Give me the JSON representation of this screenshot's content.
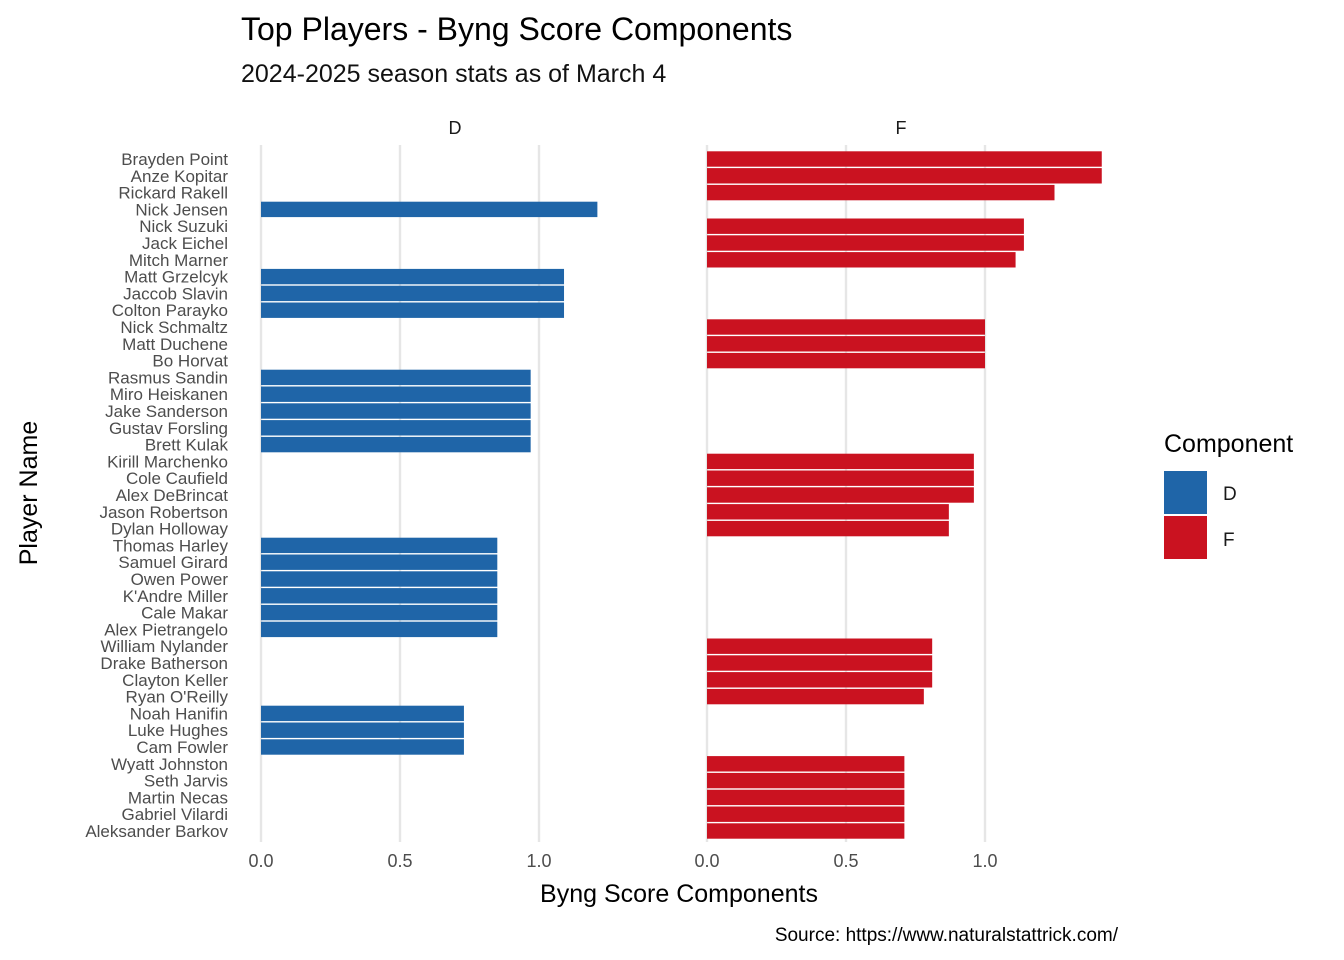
{
  "chart_data": {
    "type": "bar",
    "orientation": "horizontal",
    "title": "Top Players - Byng Score Components",
    "subtitle": "2024-2025 season stats as of March 4",
    "xlabel": "Byng Score Components",
    "ylabel": "Player Name",
    "caption": "Source: https://www.naturalstattrick.com/",
    "legend": {
      "title": "Component",
      "position": "right",
      "entries": [
        "D",
        "F"
      ]
    },
    "colors": {
      "D": "#1f65a8",
      "F": "#ca1220"
    },
    "xlim": [
      -0.05,
      1.47
    ],
    "xticks": [
      0.0,
      0.5,
      1.0
    ],
    "xtick_labels": [
      "0.0",
      "0.5",
      "1.0"
    ],
    "grid": true,
    "panels": [
      {
        "label": "D",
        "component": "D"
      },
      {
        "label": "F",
        "component": "F"
      }
    ],
    "players": [
      {
        "name": "Brayden Point",
        "component": "F",
        "value": 1.42
      },
      {
        "name": "Anze Kopitar",
        "component": "F",
        "value": 1.42
      },
      {
        "name": "Rickard Rakell",
        "component": "F",
        "value": 1.25
      },
      {
        "name": "Nick Jensen",
        "component": "D",
        "value": 1.21
      },
      {
        "name": "Nick Suzuki",
        "component": "F",
        "value": 1.14
      },
      {
        "name": "Jack Eichel",
        "component": "F",
        "value": 1.14
      },
      {
        "name": "Mitch Marner",
        "component": "F",
        "value": 1.11
      },
      {
        "name": "Matt Grzelcyk",
        "component": "D",
        "value": 1.09
      },
      {
        "name": "Jaccob Slavin",
        "component": "D",
        "value": 1.09
      },
      {
        "name": "Colton Parayko",
        "component": "D",
        "value": 1.09
      },
      {
        "name": "Nick Schmaltz",
        "component": "F",
        "value": 1.0
      },
      {
        "name": "Matt Duchene",
        "component": "F",
        "value": 1.0
      },
      {
        "name": "Bo Horvat",
        "component": "F",
        "value": 1.0
      },
      {
        "name": "Rasmus Sandin",
        "component": "D",
        "value": 0.97
      },
      {
        "name": "Miro Heiskanen",
        "component": "D",
        "value": 0.97
      },
      {
        "name": "Jake Sanderson",
        "component": "D",
        "value": 0.97
      },
      {
        "name": "Gustav Forsling",
        "component": "D",
        "value": 0.97
      },
      {
        "name": "Brett Kulak",
        "component": "D",
        "value": 0.97
      },
      {
        "name": "Kirill Marchenko",
        "component": "F",
        "value": 0.96
      },
      {
        "name": "Cole Caufield",
        "component": "F",
        "value": 0.96
      },
      {
        "name": "Alex DeBrincat",
        "component": "F",
        "value": 0.96
      },
      {
        "name": "Jason Robertson",
        "component": "F",
        "value": 0.87
      },
      {
        "name": "Dylan Holloway",
        "component": "F",
        "value": 0.87
      },
      {
        "name": "Thomas Harley",
        "component": "D",
        "value": 0.85
      },
      {
        "name": "Samuel Girard",
        "component": "D",
        "value": 0.85
      },
      {
        "name": "Owen Power",
        "component": "D",
        "value": 0.85
      },
      {
        "name": "K'Andre Miller",
        "component": "D",
        "value": 0.85
      },
      {
        "name": "Cale Makar",
        "component": "D",
        "value": 0.85
      },
      {
        "name": "Alex Pietrangelo",
        "component": "D",
        "value": 0.85
      },
      {
        "name": "William Nylander",
        "component": "F",
        "value": 0.81
      },
      {
        "name": "Drake Batherson",
        "component": "F",
        "value": 0.81
      },
      {
        "name": "Clayton Keller",
        "component": "F",
        "value": 0.81
      },
      {
        "name": "Ryan O'Reilly",
        "component": "F",
        "value": 0.78
      },
      {
        "name": "Noah Hanifin",
        "component": "D",
        "value": 0.73
      },
      {
        "name": "Luke Hughes",
        "component": "D",
        "value": 0.73
      },
      {
        "name": "Cam Fowler",
        "component": "D",
        "value": 0.73
      },
      {
        "name": "Wyatt Johnston",
        "component": "F",
        "value": 0.71
      },
      {
        "name": "Seth Jarvis",
        "component": "F",
        "value": 0.71
      },
      {
        "name": "Martin Necas",
        "component": "F",
        "value": 0.71
      },
      {
        "name": "Gabriel Vilardi",
        "component": "F",
        "value": 0.71
      },
      {
        "name": "Aleksander Barkov",
        "component": "F",
        "value": 0.71
      }
    ]
  }
}
